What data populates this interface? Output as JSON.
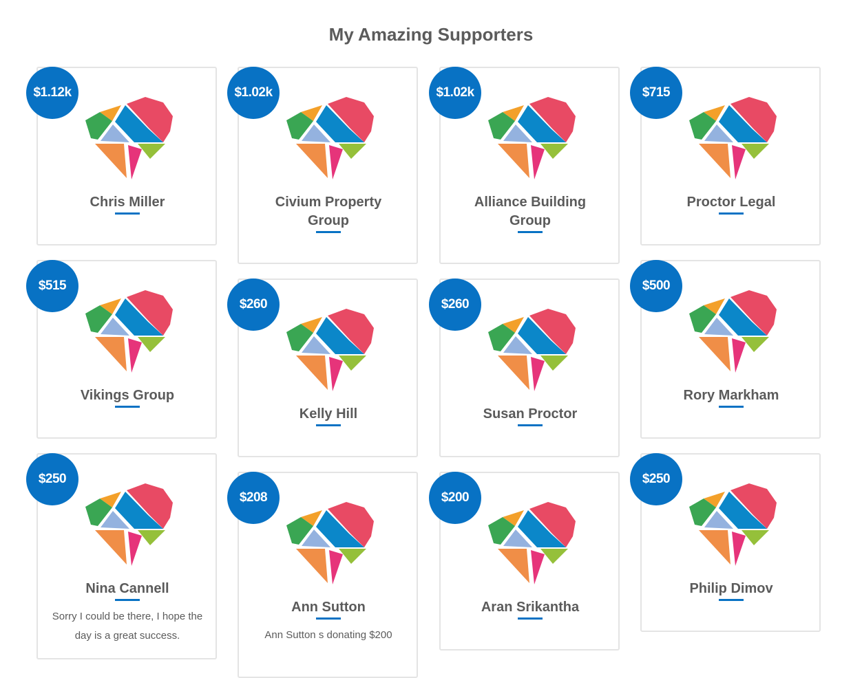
{
  "page": {
    "title": "My Amazing Supporters"
  },
  "colors": {
    "badge": "#0872c4",
    "underline": "#0872c4",
    "text": "#5b5b5b",
    "card_border": "#e4e4e4"
  },
  "heart_icon": "heart-mosaic-logo",
  "supporters": [
    {
      "amount": "$1.12k",
      "name": "Chris Miller",
      "message": ""
    },
    {
      "amount": "$1.02k",
      "name": "Civium Property Group",
      "message": ""
    },
    {
      "amount": "$1.02k",
      "name": "Alliance Building Group",
      "message": ""
    },
    {
      "amount": "$715",
      "name": "Proctor Legal",
      "message": ""
    },
    {
      "amount": "$515",
      "name": "Vikings Group",
      "message": ""
    },
    {
      "amount": "$260",
      "name": "Kelly Hill",
      "message": ""
    },
    {
      "amount": "$260",
      "name": "Susan Proctor",
      "message": ""
    },
    {
      "amount": "$500",
      "name": "Rory Markham",
      "message": ""
    },
    {
      "amount": "$250",
      "name": "Nina Cannell",
      "message": "Sorry I could be there, I hope the day is a great success."
    },
    {
      "amount": "$208",
      "name": "Ann Sutton",
      "message": "Ann Sutton s donating $200"
    },
    {
      "amount": "$200",
      "name": "Aran Srikantha",
      "message": ""
    },
    {
      "amount": "$250",
      "name": "Philip Dimov",
      "message": ""
    }
  ]
}
